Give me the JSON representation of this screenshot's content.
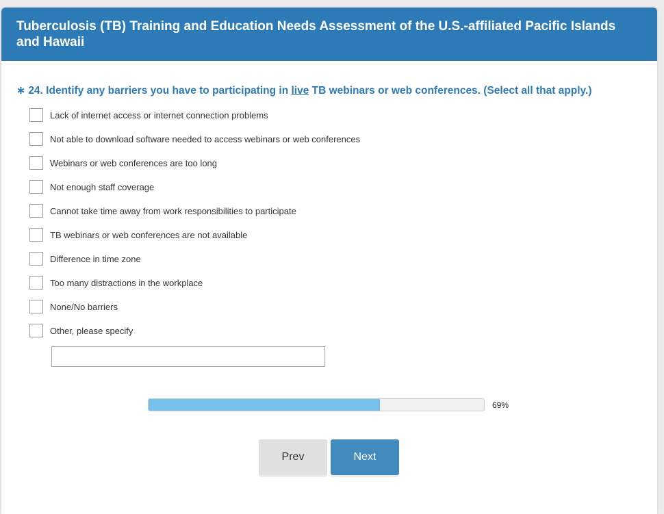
{
  "header": {
    "title": "Tuberculosis (TB) Training and Education Needs Assessment of the U.S.-affiliated Pacific Islands and Hawaii"
  },
  "question": {
    "required_marker": "∗",
    "prefix": "24. Identify any barriers you have to participating in ",
    "emphasis": "live",
    "suffix": " TB webinars or web conferences. (Select all that apply.)"
  },
  "options": [
    {
      "label": "Lack of internet access or internet connection problems",
      "checked": false
    },
    {
      "label": "Not able to download software needed to access webinars or web conferences",
      "checked": false
    },
    {
      "label": "Webinars or web conferences are too long",
      "checked": false
    },
    {
      "label": "Not enough staff coverage",
      "checked": false
    },
    {
      "label": "Cannot take time away from work responsibilities to participate",
      "checked": false
    },
    {
      "label": "TB webinars or web conferences are not available",
      "checked": false
    },
    {
      "label": "Difference in time zone",
      "checked": false
    },
    {
      "label": "Too many distractions in the workplace",
      "checked": false
    },
    {
      "label": "None/No barriers",
      "checked": false
    },
    {
      "label": "Other, please specify",
      "checked": false
    }
  ],
  "other_input": {
    "value": ""
  },
  "progress": {
    "percent": 69,
    "label": "69%"
  },
  "nav": {
    "prev": "Prev",
    "next": "Next"
  },
  "colors": {
    "header": "#2d7bb6",
    "progress_fill": "#74c0ea",
    "next_button": "#428bbf"
  }
}
